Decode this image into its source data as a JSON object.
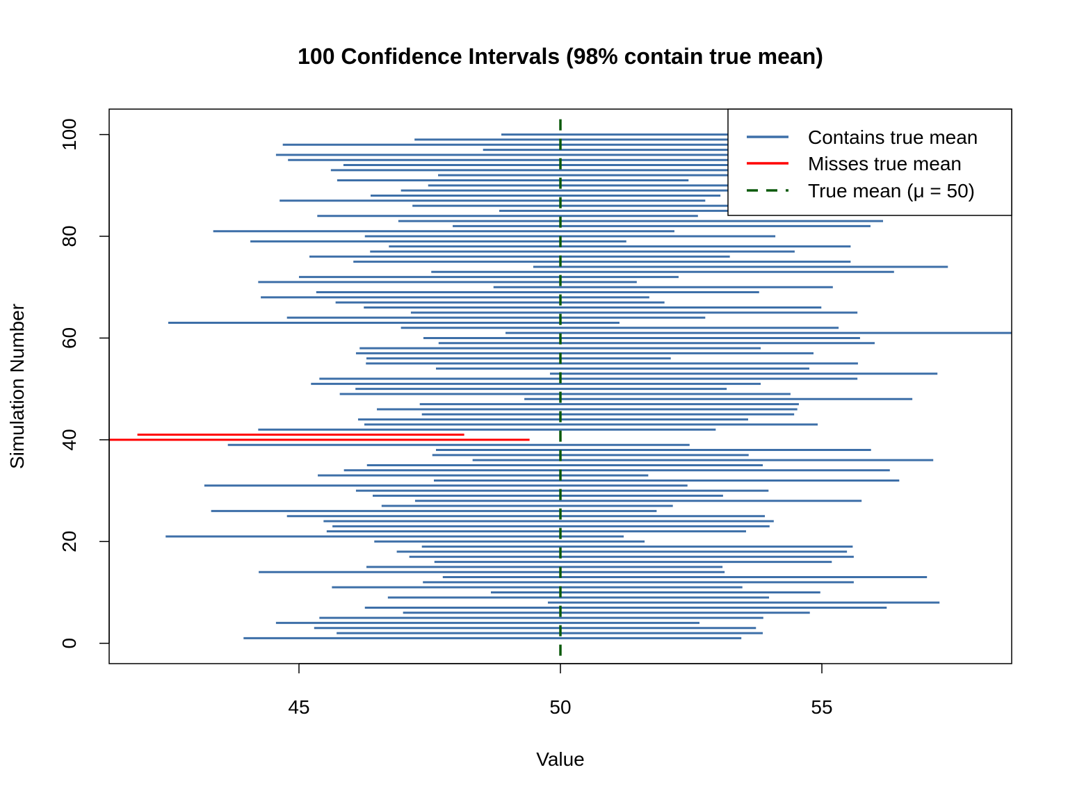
{
  "chart_data": {
    "type": "interval",
    "title": "100 Confidence Intervals (98% contain true mean)",
    "xlabel": "Value",
    "ylabel": "Simulation Number",
    "xlim": [
      41.37,
      58.63
    ],
    "ylim": [
      -4,
      105
    ],
    "x_ticks": [
      45,
      50,
      55
    ],
    "x_tick_labels": [
      "45",
      "50",
      "55"
    ],
    "y_ticks": [
      0,
      20,
      40,
      60,
      80,
      100
    ],
    "y_tick_labels": [
      "0",
      "20",
      "40",
      "60",
      "80",
      "100"
    ],
    "true_mean": 50,
    "legend_position": "top-right",
    "legend": [
      {
        "label": "Contains true mean",
        "color": "#3d6fa8",
        "style": "solid"
      },
      {
        "label": "Misses true mean",
        "color": "#ff0000",
        "style": "solid"
      },
      {
        "label": "True mean (μ = 50)",
        "color": "#0b5a0b",
        "style": "dashed"
      }
    ],
    "colors": {
      "contains": "#3d6fa8",
      "misses": "#ff0000",
      "mean": "#0b5a0b"
    },
    "simulation": [
      1,
      2,
      3,
      4,
      5,
      6,
      7,
      8,
      9,
      10,
      11,
      12,
      13,
      14,
      15,
      16,
      17,
      18,
      19,
      20,
      21,
      22,
      23,
      24,
      25,
      26,
      27,
      28,
      29,
      30,
      31,
      32,
      33,
      34,
      35,
      36,
      37,
      38,
      39,
      40,
      41,
      42,
      43,
      44,
      45,
      46,
      47,
      48,
      49,
      50,
      51,
      52,
      53,
      54,
      55,
      56,
      57,
      58,
      59,
      60,
      61,
      62,
      63,
      64,
      65,
      66,
      67,
      68,
      69,
      70,
      71,
      72,
      73,
      74,
      75,
      76,
      77,
      78,
      79,
      80,
      81,
      82,
      83,
      84,
      85,
      86,
      87,
      88,
      89,
      90,
      91,
      92,
      93,
      94,
      95,
      96,
      97,
      98,
      99,
      100
    ],
    "lower": [
      43.94,
      45.72,
      45.29,
      44.56,
      45.39,
      46.99,
      46.26,
      49.76,
      46.7,
      48.67,
      45.63,
      47.37,
      47.75,
      44.23,
      46.29,
      47.59,
      47.11,
      46.87,
      47.35,
      46.44,
      42.45,
      45.53,
      45.64,
      45.47,
      44.77,
      43.32,
      46.58,
      47.22,
      46.41,
      46.09,
      43.19,
      47.58,
      45.36,
      45.86,
      46.3,
      48.32,
      47.55,
      47.62,
      43.64,
      41.2,
      41.91,
      44.22,
      46.25,
      46.13,
      47.35,
      46.49,
      47.31,
      49.31,
      45.78,
      46.08,
      45.23,
      45.39,
      49.8,
      47.62,
      46.28,
      46.29,
      46.09,
      46.16,
      47.67,
      47.38,
      48.95,
      46.95,
      42.5,
      44.77,
      47.14,
      46.24,
      45.7,
      44.27,
      45.33,
      48.72,
      44.22,
      45.0,
      47.53,
      49.48,
      46.04,
      45.2,
      46.36,
      46.72,
      44.07,
      46.26,
      43.36,
      47.94,
      46.9,
      45.35,
      48.83,
      47.17,
      44.63,
      46.37,
      46.95,
      47.47,
      45.73,
      47.66,
      45.61,
      45.85,
      44.79,
      44.56,
      48.52,
      44.69,
      47.21,
      48.87
    ],
    "upper": [
      53.46,
      53.87,
      53.74,
      52.66,
      53.88,
      54.77,
      56.24,
      57.25,
      53.99,
      54.97,
      53.48,
      55.61,
      57.01,
      53.14,
      53.1,
      55.19,
      55.61,
      55.48,
      55.59,
      51.61,
      51.21,
      53.55,
      54.0,
      54.08,
      53.91,
      51.84,
      52.15,
      55.76,
      53.11,
      53.98,
      52.43,
      56.48,
      51.68,
      56.3,
      53.87,
      57.13,
      53.6,
      55.94,
      52.47,
      49.41,
      48.16,
      52.97,
      54.92,
      53.59,
      54.47,
      54.53,
      54.56,
      56.73,
      54.4,
      53.18,
      53.83,
      55.68,
      57.21,
      54.76,
      55.69,
      52.11,
      54.84,
      53.83,
      56.01,
      55.73,
      58.9,
      55.32,
      51.13,
      52.77,
      55.68,
      54.99,
      51.99,
      51.7,
      53.8,
      55.21,
      51.46,
      52.26,
      56.38,
      57.41,
      55.55,
      53.24,
      54.48,
      55.55,
      51.26,
      54.11,
      52.18,
      55.93,
      56.17,
      52.63,
      55.7,
      54.8,
      52.77,
      53.06,
      54.2,
      54.6,
      52.45,
      55.2,
      53.8,
      54.0,
      53.5,
      53.6,
      55.9,
      53.9,
      54.3,
      55.6
    ]
  }
}
